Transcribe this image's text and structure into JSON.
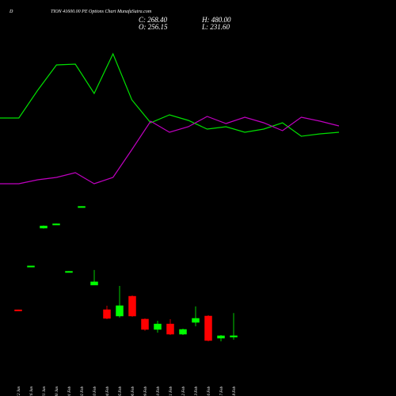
{
  "header": {
    "symbol": "D",
    "title": "TION 41600.00 PE Options Chart MunafaSutra.com",
    "close": "C: 268.40",
    "high": "H: 480.00",
    "open": "O: 256.15",
    "low": "L: 231.60"
  },
  "chart_data": [
    {
      "type": "line",
      "x": [
        0,
        1,
        2,
        3,
        4,
        5,
        6,
        7,
        8,
        9,
        10,
        11,
        12,
        13,
        14,
        15,
        16,
        17,
        18
      ],
      "xlim": [
        0,
        18
      ],
      "ylim": [
        0,
        100
      ],
      "series": [
        {
          "color": "#00e000",
          "values": [
            50.5,
            50.5,
            68,
            84,
            84.5,
            66,
            91,
            62,
            47.5,
            52.5,
            49,
            43.5,
            45,
            41.5,
            43.5,
            47.5,
            39,
            40.5,
            41.5
          ]
        },
        {
          "color": "#c000c0",
          "values": [
            9,
            9,
            11.5,
            13,
            16,
            9,
            13,
            30.5,
            48.5,
            41.5,
            45,
            51.5,
            47,
            51,
            47.5,
            42.5,
            51,
            48.5,
            45.5
          ]
        }
      ]
    },
    {
      "type": "candlestick",
      "categories": [
        "12 Jan",
        "16 Jan",
        "21 Jan",
        "30 Jan",
        "01 Feb",
        "02 Feb",
        "03 Feb",
        "04 Feb",
        "05 Feb",
        "06 Feb",
        "09 Feb",
        "10 Feb",
        "11 Feb",
        "12 Feb",
        "13 Feb",
        "16 Feb",
        "17 Feb",
        "18 Feb"
      ],
      "open": [
        510,
        914,
        1270,
        1302,
        862,
        1466,
        740,
        511,
        452,
        636,
        423,
        327,
        378,
        283,
        393,
        452,
        246,
        256.15
      ],
      "high": [
        512,
        920,
        1295,
        1312,
        870,
        1474,
        880,
        548,
        732,
        644,
        430,
        408,
        423,
        334,
        541,
        460,
        275,
        480
      ],
      "low": [
        498,
        912,
        1265,
        1300,
        860,
        1464,
        740,
        423,
        437,
        445,
        315,
        297,
        275,
        275,
        356,
        216,
        216,
        231.6
      ],
      "close": [
        500,
        918,
        1290,
        1310,
        868,
        1472,
        770,
        430,
        548,
        452,
        327,
        378,
        283,
        327,
        430,
        224,
        268,
        268.4
      ],
      "ylim": [
        150,
        1550
      ],
      "up_color": "#00ff00",
      "down_color": "#ff0000"
    }
  ]
}
